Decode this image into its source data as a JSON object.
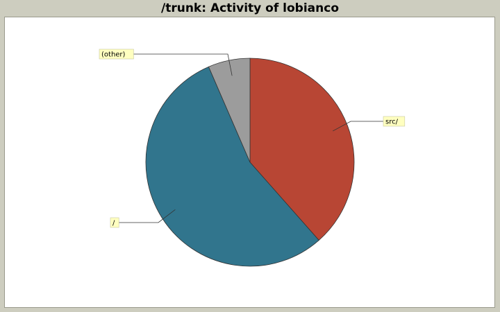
{
  "chart_data": {
    "type": "pie",
    "title": "/trunk: Activity of lobianco",
    "slices": [
      {
        "label": "src/",
        "value": 38.5,
        "color": "#b84634"
      },
      {
        "label": "/",
        "value": 55.0,
        "color": "#31758d"
      },
      {
        "label": "(other)",
        "value": 6.5,
        "color": "#9c9c9c"
      }
    ],
    "legend": "none",
    "label_background": "#ffffc0"
  }
}
